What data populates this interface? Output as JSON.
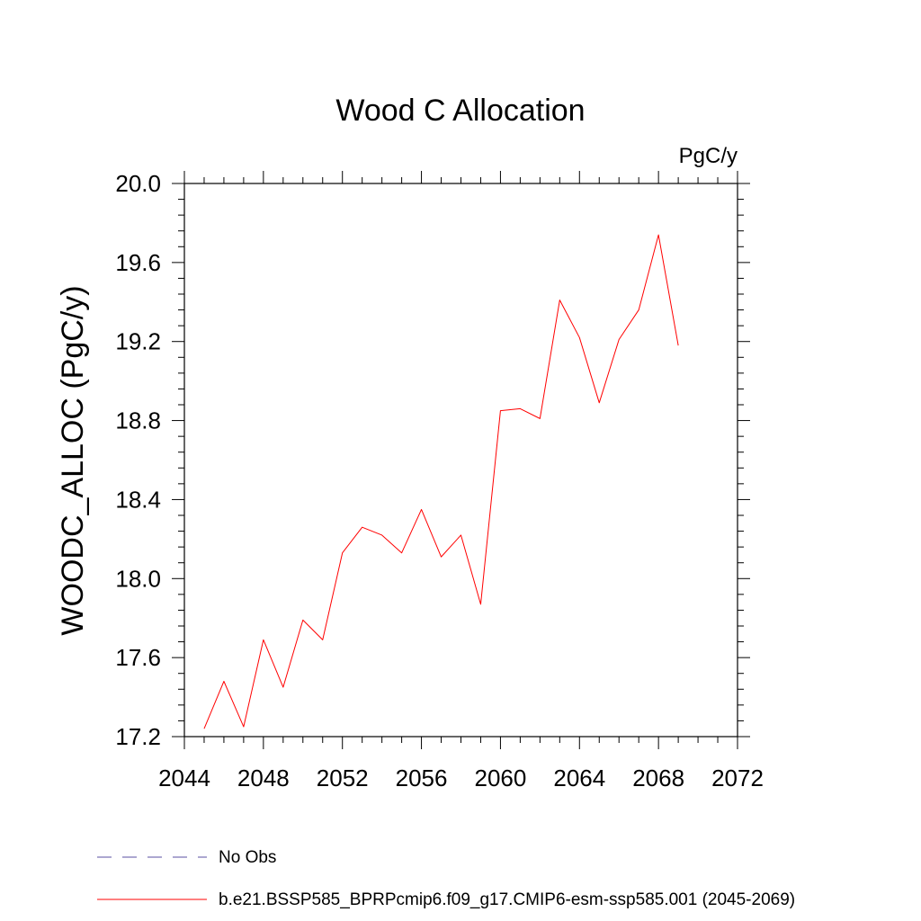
{
  "chart_data": {
    "type": "line",
    "title": "Wood C Allocation",
    "units": "PgC/y",
    "xlabel": "",
    "ylabel": "WOODC_ALLOC  (PgC/y)",
    "xlim": [
      2044,
      2072
    ],
    "ylim": [
      17.2,
      20.0
    ],
    "xticks": [
      2044,
      2048,
      2052,
      2056,
      2060,
      2064,
      2068,
      2072
    ],
    "yticks": [
      17.2,
      17.6,
      18.0,
      18.4,
      18.8,
      19.2,
      19.6,
      20.0
    ],
    "xtick_labels": [
      "2044",
      "2048",
      "2052",
      "2056",
      "2060",
      "2064",
      "2068",
      "2072"
    ],
    "ytick_labels": [
      "17.2",
      "17.6",
      "18.0",
      "18.4",
      "18.8",
      "19.2",
      "19.6",
      "20.0"
    ],
    "grid": false,
    "legend_position": "bottom",
    "series": [
      {
        "name": "b.e21.BSSP585_BPRPcmip6.f09_g17.CMIP6-esm-ssp585.001 (2045-2069)",
        "color": "#ff0000",
        "x": [
          2045,
          2046,
          2047,
          2048,
          2049,
          2050,
          2051,
          2052,
          2053,
          2054,
          2055,
          2056,
          2057,
          2058,
          2059,
          2060,
          2061,
          2062,
          2063,
          2064,
          2065,
          2066,
          2067,
          2068,
          2069
        ],
        "values": [
          17.24,
          17.48,
          17.25,
          17.69,
          17.45,
          17.79,
          17.69,
          18.13,
          18.26,
          18.22,
          18.13,
          18.35,
          18.11,
          18.22,
          17.87,
          18.85,
          18.86,
          18.81,
          19.41,
          19.22,
          18.89,
          19.21,
          19.36,
          19.74,
          19.18
        ]
      }
    ],
    "legend": [
      {
        "label": "No Obs",
        "color": "#5a4fa0",
        "dashed": true
      },
      {
        "label": "b.e21.BSSP585_BPRPcmip6.f09_g17.CMIP6-esm-ssp585.001 (2045-2069)",
        "color": "#ff0000",
        "dashed": false
      }
    ]
  }
}
